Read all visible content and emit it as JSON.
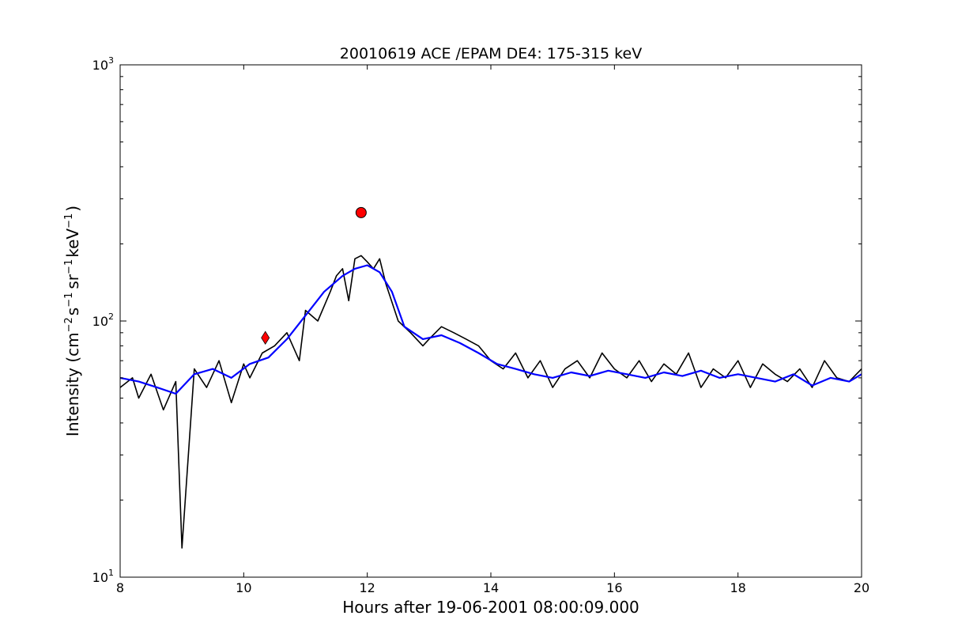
{
  "chart_data": {
    "type": "line",
    "title": "20010619 ACE /EPAM DE4: 175-315 keV",
    "xlabel": "Hours after 19-06-2001 08:00:09.000",
    "ylabel": {
      "prefix": "Intensity (cm",
      "exp1": "−2",
      "part2": "s",
      "exp2": "−1",
      "part3": "sr",
      "exp3": "−1",
      "part4": "keV",
      "exp4": "−1",
      "suffix": ")"
    },
    "xlim": [
      8,
      20
    ],
    "ylim": [
      10,
      1000
    ],
    "yscale": "log",
    "grid": false,
    "x_ticks": [
      "8",
      "10",
      "12",
      "14",
      "16",
      "18",
      "20"
    ],
    "y_ticks": [
      {
        "base": "10",
        "exp": "1",
        "value": 10
      },
      {
        "base": "10",
        "exp": "2",
        "value": 100
      },
      {
        "base": "10",
        "exp": "3",
        "value": 1000
      }
    ],
    "series": [
      {
        "color": "#000000",
        "x": [
          8.0,
          8.2,
          8.3,
          8.5,
          8.7,
          8.9,
          9.0,
          9.2,
          9.4,
          9.6,
          9.8,
          10.0,
          10.1,
          10.3,
          10.5,
          10.7,
          10.9,
          11.0,
          11.2,
          11.4,
          11.5,
          11.6,
          11.7,
          11.8,
          11.9,
          12.0,
          12.1,
          12.2,
          12.3,
          12.5,
          12.7,
          12.9,
          13.0,
          13.2,
          13.4,
          13.6,
          13.8,
          14.0,
          14.2,
          14.4,
          14.6,
          14.8,
          15.0,
          15.2,
          15.4,
          15.6,
          15.8,
          16.0,
          16.2,
          16.4,
          16.6,
          16.8,
          17.0,
          17.2,
          17.4,
          17.6,
          17.8,
          18.0,
          18.2,
          18.4,
          18.6,
          18.8,
          19.0,
          19.2,
          19.4,
          19.6,
          19.8,
          20.0
        ],
        "y": [
          55,
          60,
          50,
          62,
          45,
          58,
          13,
          65,
          55,
          70,
          48,
          68,
          60,
          75,
          80,
          90,
          70,
          110,
          100,
          130,
          150,
          160,
          120,
          175,
          180,
          170,
          160,
          175,
          140,
          100,
          90,
          80,
          85,
          95,
          90,
          85,
          80,
          70,
          65,
          75,
          60,
          70,
          55,
          65,
          70,
          60,
          75,
          65,
          60,
          70,
          58,
          68,
          62,
          75,
          55,
          65,
          60,
          70,
          55,
          68,
          62,
          58,
          65,
          55,
          70,
          60,
          58,
          65
        ]
      },
      {
        "color": "#0000ff",
        "x": [
          8.0,
          8.3,
          8.6,
          8.9,
          9.2,
          9.5,
          9.8,
          10.1,
          10.4,
          10.7,
          11.0,
          11.3,
          11.6,
          11.8,
          12.0,
          12.2,
          12.4,
          12.6,
          12.9,
          13.2,
          13.5,
          13.8,
          14.1,
          14.4,
          14.7,
          15.0,
          15.3,
          15.6,
          15.9,
          16.2,
          16.5,
          16.8,
          17.1,
          17.4,
          17.7,
          18.0,
          18.3,
          18.6,
          18.9,
          19.2,
          19.5,
          19.8,
          20.0
        ],
        "y": [
          60,
          58,
          55,
          52,
          62,
          65,
          60,
          68,
          72,
          85,
          105,
          130,
          150,
          160,
          165,
          155,
          130,
          95,
          85,
          88,
          82,
          75,
          68,
          65,
          62,
          60,
          63,
          61,
          64,
          62,
          60,
          63,
          61,
          64,
          60,
          62,
          60,
          58,
          62,
          56,
          60,
          58,
          62
        ]
      }
    ],
    "markers": [
      {
        "x": 10.35,
        "y": 86,
        "color": "#ff0000",
        "shape": "diamond"
      },
      {
        "x": 11.9,
        "y": 265,
        "color": "#ff0000",
        "shape": "circle"
      }
    ]
  }
}
